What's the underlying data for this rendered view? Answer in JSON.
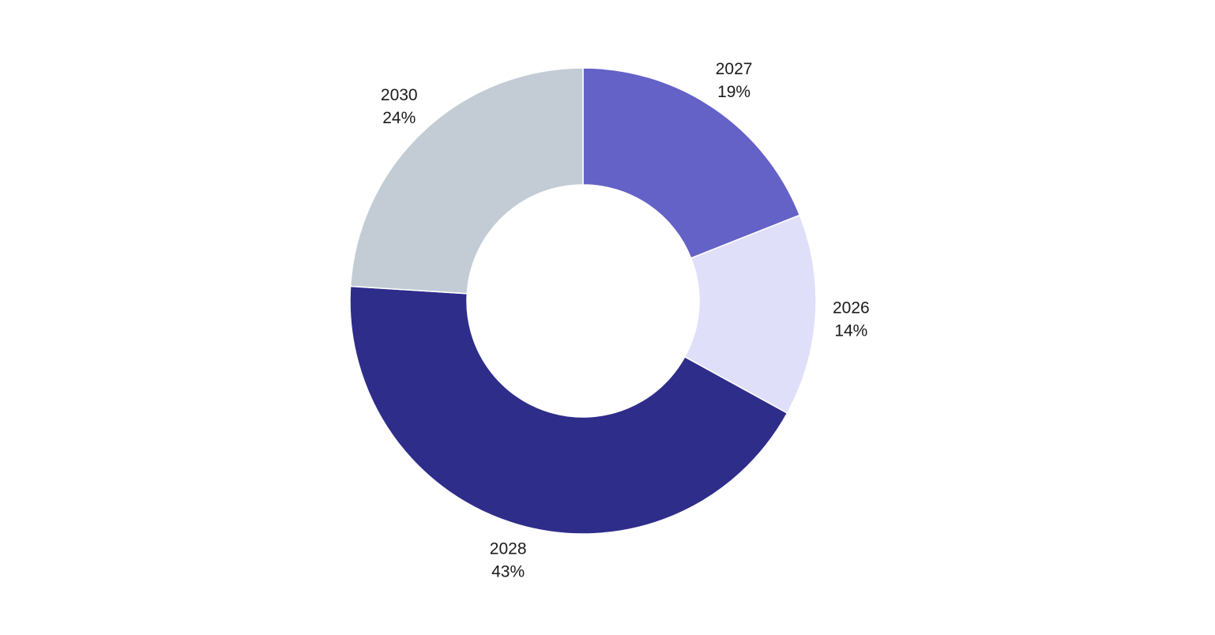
{
  "chart_data": {
    "type": "pie",
    "variant": "donut",
    "slices": [
      {
        "label": "2027",
        "value": 19,
        "display": "19%",
        "color": "#6461c7"
      },
      {
        "label": "2026",
        "value": 14,
        "display": "14%",
        "color": "#dfdffa"
      },
      {
        "label": "2028",
        "value": 43,
        "display": "43%",
        "color": "#2e2d8a"
      },
      {
        "label": "2030",
        "value": 24,
        "display": "24%",
        "color": "#c3ccd5"
      }
    ],
    "start": "top",
    "direction": "clockwise",
    "legend": "none"
  }
}
